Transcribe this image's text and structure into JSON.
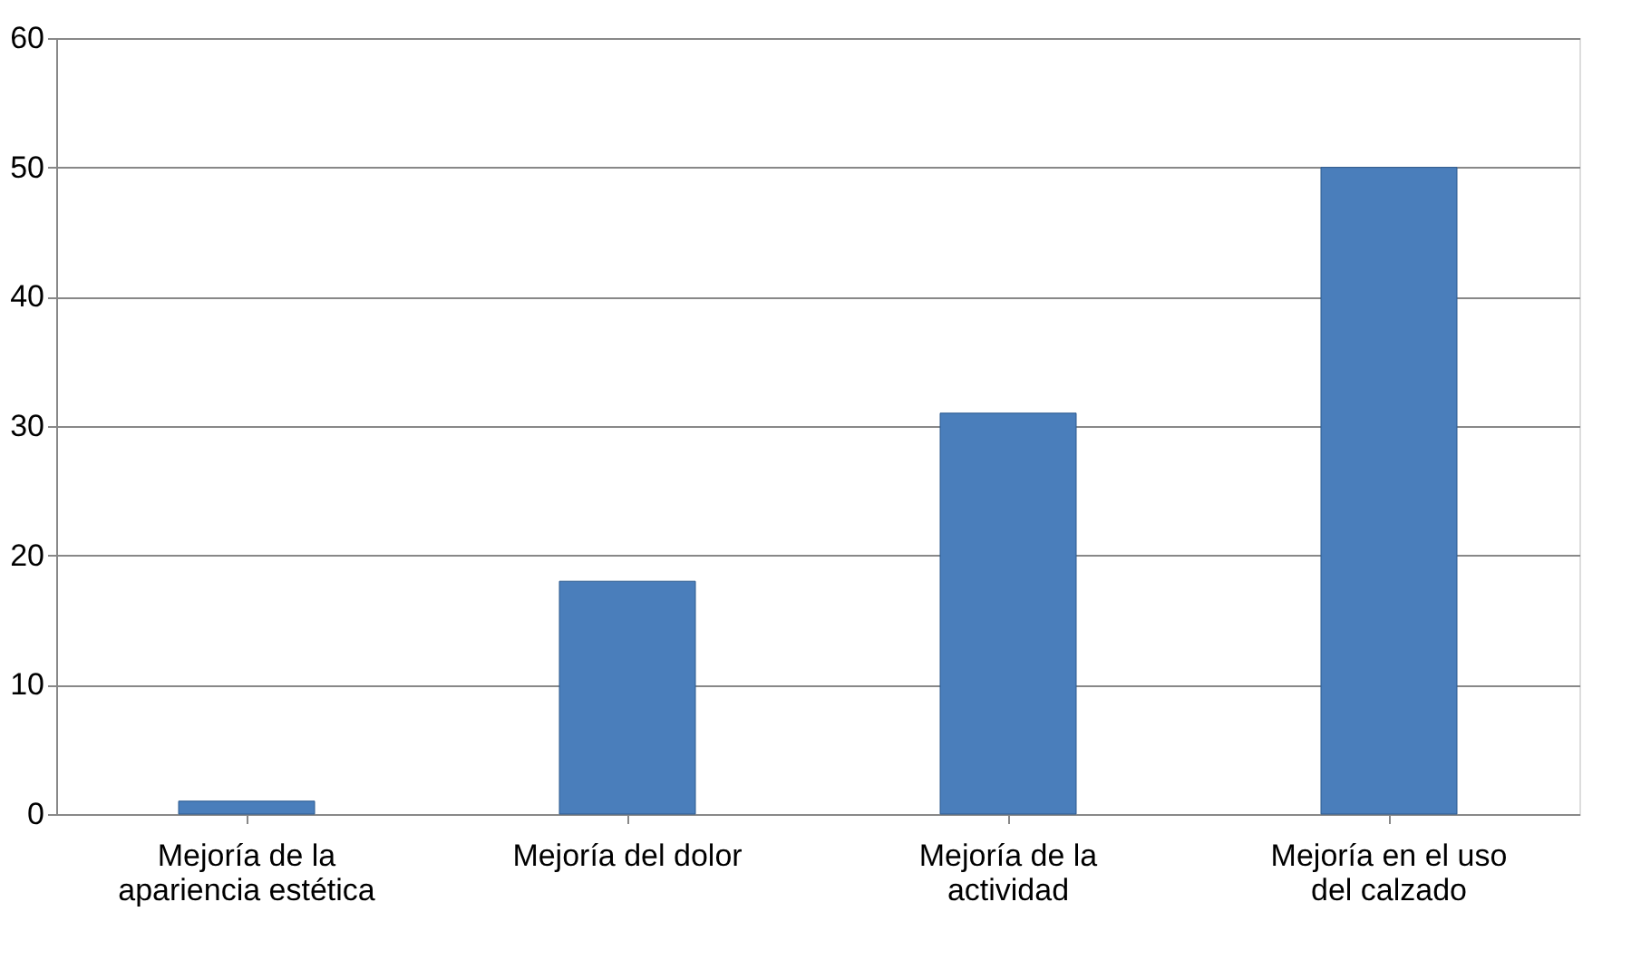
{
  "chart_data": {
    "type": "bar",
    "categories": [
      "Mejoría de la apariencia estética",
      "Mejoría del dolor",
      "Mejoría de la actividad",
      "Mejoría en el uso del calzado"
    ],
    "values": [
      1,
      18,
      31,
      50
    ],
    "color": "#4a7ebb",
    "ylim": [
      0,
      60
    ],
    "yticks": [
      0,
      10,
      20,
      30,
      40,
      50,
      60
    ],
    "grid": "y"
  }
}
